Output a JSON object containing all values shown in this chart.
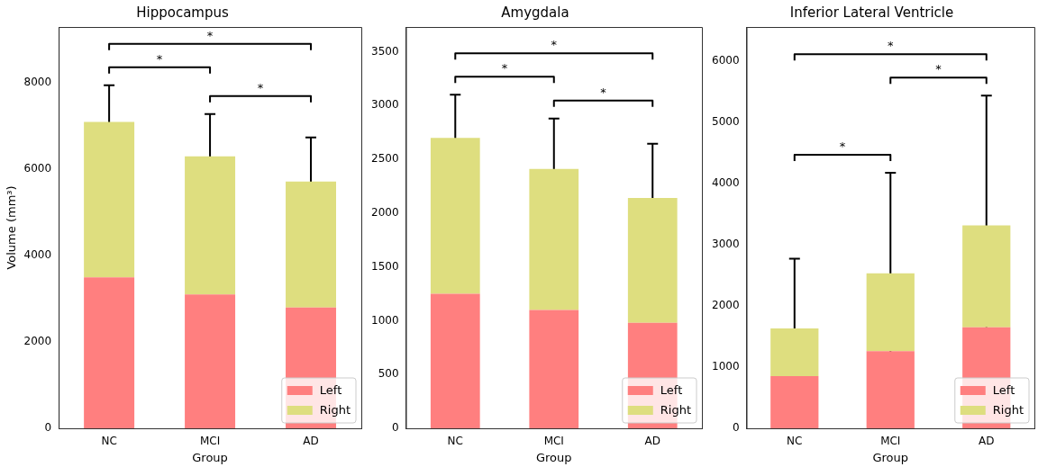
{
  "chart_data": [
    {
      "type": "bar",
      "stacked": true,
      "title": "Hippocampus",
      "xlabel": "Group",
      "ylabel": "Volume (mm³)",
      "categories": [
        "NC",
        "MCI",
        "AD"
      ],
      "legend": "bottom right",
      "ylim": [
        0,
        9300
      ],
      "yticks": [
        0,
        2000,
        4000,
        6000,
        8000
      ],
      "series": [
        {
          "name": "Left",
          "color": "#ff7f7f",
          "values": [
            3500,
            3100,
            2800
          ]
        },
        {
          "name": "Right",
          "color": "#dede7f",
          "values": [
            3600,
            3200,
            2920
          ],
          "errors": [
            850,
            980,
            1020
          ]
        }
      ],
      "annotations": [
        "*",
        "*",
        "*"
      ]
    },
    {
      "type": "bar",
      "stacked": true,
      "title": "Amygdala",
      "xlabel": "Group",
      "categories": [
        "NC",
        "MCI",
        "AD"
      ],
      "legend": "bottom right",
      "ylim": [
        0,
        3730
      ],
      "yticks": [
        0,
        500,
        1000,
        1500,
        2000,
        2500,
        3000,
        3500
      ],
      "series": [
        {
          "name": "Left",
          "color": "#ff7f7f",
          "values": [
            1250,
            1100,
            980
          ]
        },
        {
          "name": "Right",
          "color": "#dede7f",
          "values": [
            1450,
            1310,
            1160
          ],
          "errors": [
            400,
            470,
            505
          ]
        }
      ],
      "annotations": [
        "*",
        "*",
        "*"
      ]
    },
    {
      "type": "bar",
      "stacked": true,
      "title": "Inferior Lateral Ventricle",
      "xlabel": "Group",
      "categories": [
        "NC",
        "MCI",
        "AD"
      ],
      "legend": "bottom right",
      "ylim": [
        0,
        6550
      ],
      "yticks": [
        0,
        1000,
        2000,
        3000,
        4000,
        5000,
        6000
      ],
      "series": [
        {
          "name": "Left",
          "color": "#ff7f7f",
          "values": [
            850,
            1260,
            1650
          ]
        },
        {
          "name": "Right",
          "color": "#dede7f",
          "values": [
            780,
            1270,
            1660
          ],
          "errors": [
            1140,
            1640,
            2120
          ]
        }
      ],
      "annotations": [
        "*",
        "*",
        "*"
      ]
    }
  ]
}
